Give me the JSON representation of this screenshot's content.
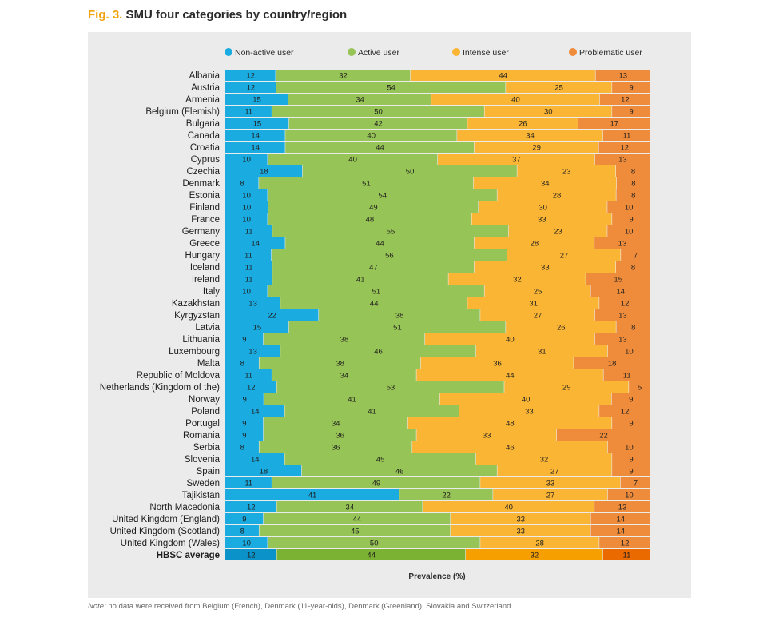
{
  "title": {
    "prefix": "Fig. 3.",
    "text": "SMU four categories by country/region"
  },
  "note": {
    "label": "Note:",
    "text": " no data were received from Belgium (French), Denmark (11-year-olds), Denmark (Greenland), Slovakia and Switzerland."
  },
  "colors": {
    "non_active": "#1aabe0",
    "active": "#97c456",
    "intense": "#fbb535",
    "problematic": "#ef8c3c",
    "avg_non_active": "#0b93c9",
    "avg_active": "#7cb233",
    "avg_intense": "#f5a000",
    "avg_problematic": "#ea6a00"
  },
  "chart_data": {
    "type": "bar",
    "orientation": "horizontal",
    "stacked": true,
    "xlabel": "Prevalence (%)",
    "xlim": [
      0,
      100
    ],
    "legend_position": "top",
    "grid": false,
    "series_names": [
      "Non-active user",
      "Active user",
      "Intense user",
      "Problematic user"
    ],
    "categories": [
      "Albania",
      "Austria",
      "Armenia",
      "Belgium (Flemish)",
      "Bulgaria",
      "Canada",
      "Croatia",
      "Cyprus",
      "Czechia",
      "Denmark",
      "Estonia",
      "Finland",
      "France",
      "Germany",
      "Greece",
      "Hungary",
      "Iceland",
      "Ireland",
      "Italy",
      "Kazakhstan",
      "Kyrgyzstan",
      "Latvia",
      "Lithuania",
      "Luxembourg",
      "Malta",
      "Republic of Moldova",
      "Netherlands (Kingdom of the)",
      "Norway",
      "Poland",
      "Portugal",
      "Romania",
      "Serbia",
      "Slovenia",
      "Spain",
      "Sweden",
      "Tajikistan",
      "North Macedonia",
      "United Kingdom (England)",
      "United Kingdom (Scotland)",
      "United Kingdom (Wales)",
      "HBSC average"
    ],
    "rows": [
      [
        12,
        32,
        44,
        13
      ],
      [
        12,
        54,
        25,
        9
      ],
      [
        15,
        34,
        40,
        12
      ],
      [
        11,
        50,
        30,
        9
      ],
      [
        15,
        42,
        26,
        17
      ],
      [
        14,
        40,
        34,
        11
      ],
      [
        14,
        44,
        29,
        12
      ],
      [
        10,
        40,
        37,
        13
      ],
      [
        18,
        50,
        23,
        8
      ],
      [
        8,
        51,
        34,
        8
      ],
      [
        10,
        54,
        28,
        8
      ],
      [
        10,
        49,
        30,
        10
      ],
      [
        10,
        48,
        33,
        9
      ],
      [
        11,
        55,
        23,
        10
      ],
      [
        14,
        44,
        28,
        13
      ],
      [
        11,
        56,
        27,
        7
      ],
      [
        11,
        47,
        33,
        8
      ],
      [
        11,
        41,
        32,
        15
      ],
      [
        10,
        51,
        25,
        14
      ],
      [
        13,
        44,
        31,
        12
      ],
      [
        22,
        38,
        27,
        13
      ],
      [
        15,
        51,
        26,
        8
      ],
      [
        9,
        38,
        40,
        13
      ],
      [
        13,
        46,
        31,
        10
      ],
      [
        8,
        38,
        36,
        18
      ],
      [
        11,
        34,
        44,
        11
      ],
      [
        12,
        53,
        29,
        5
      ],
      [
        9,
        41,
        40,
        9
      ],
      [
        14,
        41,
        33,
        12
      ],
      [
        9,
        34,
        48,
        9
      ],
      [
        9,
        36,
        33,
        22
      ],
      [
        8,
        36,
        46,
        10
      ],
      [
        14,
        45,
        32,
        9
      ],
      [
        18,
        46,
        27,
        9
      ],
      [
        11,
        49,
        33,
        7
      ],
      [
        41,
        22,
        27,
        10
      ],
      [
        12,
        34,
        40,
        13
      ],
      [
        9,
        44,
        33,
        14
      ],
      [
        8,
        45,
        33,
        14
      ],
      [
        10,
        50,
        28,
        12
      ],
      [
        12,
        44,
        32,
        11
      ]
    ],
    "highlight_category": "HBSC average"
  }
}
